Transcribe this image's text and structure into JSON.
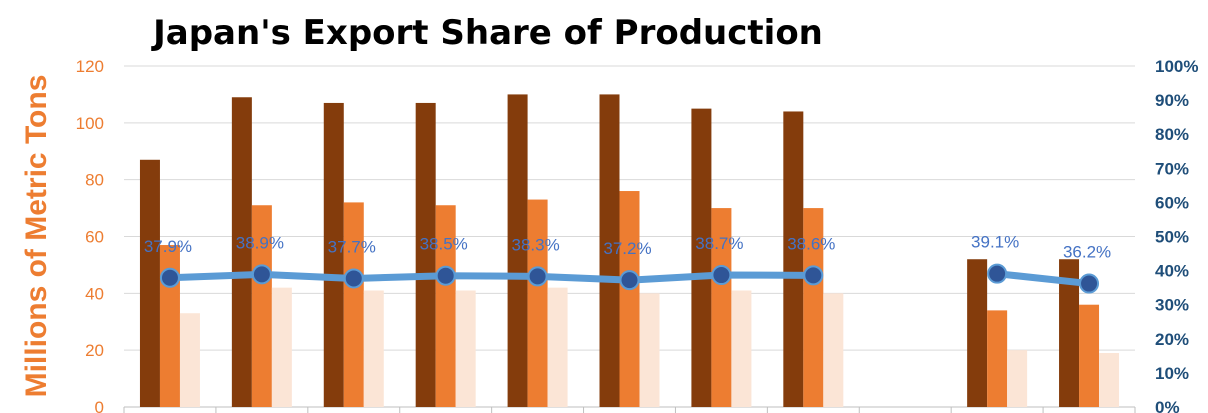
{
  "chart_data": {
    "type": "bar",
    "title": "Japan's Export Share of Production",
    "ylabel": "Millions of Metric Tons",
    "ylim": [
      0,
      120
    ],
    "yticks": [
      "0",
      "20",
      "40",
      "60",
      "80",
      "100",
      "120"
    ],
    "y2lim": [
      0,
      1
    ],
    "y2ticks": [
      "0%",
      "10%",
      "20%",
      "30%",
      "40%",
      "50%",
      "60%",
      "70%",
      "80%",
      "90%",
      "100%"
    ],
    "grid": true,
    "legend": "none",
    "categories": [
      "",
      "",
      "",
      "",
      "",
      "",
      "",
      "",
      "",
      "",
      ""
    ],
    "series": [
      {
        "type": "bar",
        "color": "#843C0C",
        "values": [
          87,
          109,
          107,
          107,
          110,
          110,
          105,
          104,
          null,
          52,
          52
        ]
      },
      {
        "type": "bar",
        "color": "#ED7D31",
        "values": [
          57,
          71,
          72,
          71,
          73,
          76,
          70,
          70,
          null,
          34,
          36
        ]
      },
      {
        "type": "bar",
        "color": "#FBE5D6",
        "values": [
          33,
          42,
          41,
          41,
          42,
          40,
          41,
          40,
          null,
          20,
          19
        ]
      },
      {
        "type": "line",
        "axis": "right",
        "color": "#5B9BD5",
        "marker_color": "#2F5597",
        "values": [
          0.379,
          0.389,
          0.377,
          0.385,
          0.383,
          0.372,
          0.387,
          0.386,
          null,
          0.391,
          0.362
        ],
        "labels": [
          "37.9%",
          "38.9%",
          "37.7%",
          "38.5%",
          "38.3%",
          "37.2%",
          "38.7%",
          "38.6%",
          "",
          "39.1%",
          "36.2%"
        ]
      }
    ]
  }
}
